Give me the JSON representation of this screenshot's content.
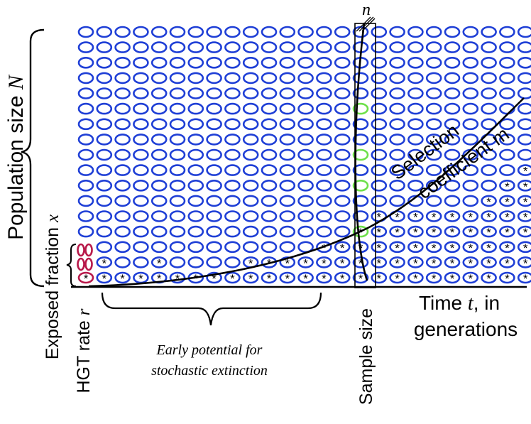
{
  "colors": {
    "cell": "#1f3fd6",
    "sampled_cell": "#6ee04a",
    "exposed": "#b8194a",
    "line": "#000000"
  },
  "symbols": {
    "transformed_marker": "*"
  },
  "labels": {
    "population_size_text": "Population size ",
    "population_size_var": "N",
    "exposed_fraction_text": "Exposed fraction ",
    "exposed_fraction_var": "x",
    "hgt_rate_text": "HGT rate ",
    "hgt_rate_var": "r",
    "early_potential_line1": "Early potential for",
    "early_potential_line2": "stochastic extinction",
    "sample_size_text": "Sample size",
    "sample_size_var": "n",
    "selection_line1": "Selection",
    "selection_line2": "coefficient m",
    "time_line1_text": "Time ",
    "time_line1_var": "t",
    "time_line1_suffix": ", in",
    "time_line2": "generations"
  },
  "grid": {
    "columns": 25,
    "rows": 17,
    "sample_column_index": 15,
    "sampled_green_rows": [
      5,
      8,
      10,
      13
    ],
    "transformed_rows_by_column": [
      1,
      2,
      1,
      1,
      2,
      1,
      1,
      1,
      1,
      2,
      2,
      2,
      2,
      3,
      3,
      4,
      5,
      5,
      5,
      5,
      5,
      5,
      6,
      7,
      8
    ]
  }
}
